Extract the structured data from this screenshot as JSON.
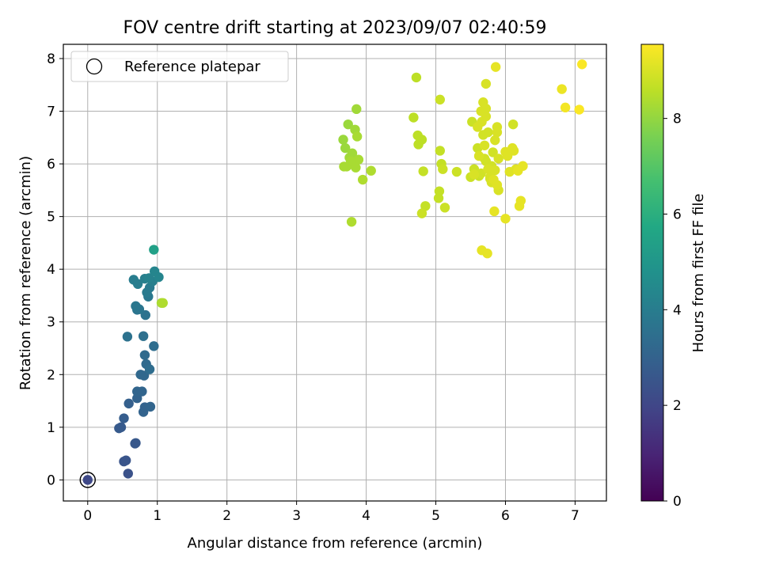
{
  "chart_data": {
    "type": "scatter",
    "title": "FOV centre drift starting at 2023/09/07 02:40:59",
    "xlabel": "Angular distance from reference (arcmin)",
    "ylabel": "Rotation from reference (arcmin)",
    "xlim": [
      -0.35,
      7.45
    ],
    "ylim": [
      -0.4,
      8.27
    ],
    "xticks": [
      0,
      1,
      2,
      3,
      4,
      5,
      6,
      7
    ],
    "yticks": [
      0,
      1,
      2,
      3,
      4,
      5,
      6,
      7,
      8
    ],
    "grid": true,
    "legend": {
      "placement": "upper-left",
      "entries": [
        "Reference platepar"
      ]
    },
    "reference_point": {
      "x": 0,
      "y": 0
    },
    "colorbar": {
      "label": "Hours from first FF file",
      "range": [
        0,
        9.55
      ],
      "ticks": [
        0,
        2,
        4,
        6,
        8
      ],
      "colormap": "viridis"
    },
    "series": [
      {
        "x": [
          0.0,
          0.58,
          0.52,
          0.55,
          0.68,
          0.69,
          0.45,
          0.48,
          0.52,
          0.59,
          0.71,
          0.8,
          0.82,
          0.9,
          0.71,
          0.78,
          0.81,
          0.76,
          0.84,
          0.82,
          0.89,
          0.95,
          0.8,
          0.57,
          0.83,
          0.71,
          0.74,
          0.69,
          0.87,
          0.85,
          0.89,
          0.66,
          0.72,
          0.82,
          0.93,
          0.88,
          0.96,
          1.02,
          0.95,
          1.06,
          1.08
        ],
        "y": [
          0.0,
          0.12,
          0.35,
          0.37,
          0.69,
          0.7,
          0.98,
          1.0,
          1.17,
          1.45,
          1.55,
          1.29,
          1.38,
          1.39,
          1.68,
          1.68,
          1.98,
          2.0,
          2.2,
          2.37,
          2.1,
          2.54,
          2.73,
          2.72,
          3.13,
          3.23,
          3.24,
          3.3,
          3.48,
          3.56,
          3.65,
          3.8,
          3.72,
          3.82,
          3.77,
          3.83,
          3.96,
          3.85,
          4.37,
          3.36,
          3.36
        ],
        "hours": [
          2.1,
          2.4,
          2.5,
          2.5,
          2.6,
          2.6,
          2.7,
          2.7,
          2.8,
          2.9,
          3.0,
          3.0,
          3.0,
          3.1,
          3.1,
          3.1,
          3.2,
          3.2,
          3.3,
          3.3,
          3.4,
          3.4,
          3.5,
          3.6,
          3.6,
          3.7,
          3.7,
          3.8,
          3.8,
          3.9,
          3.9,
          4.0,
          4.0,
          4.1,
          4.1,
          4.2,
          4.3,
          4.3,
          5.4,
          8.3,
          8.4
        ]
      },
      {
        "x": [
          3.67,
          3.7,
          3.74,
          3.76,
          3.8,
          3.82,
          3.84,
          3.86,
          3.87,
          3.89,
          3.68,
          3.72,
          3.78,
          3.85,
          3.95,
          4.07,
          3.79,
          4.68,
          4.72,
          4.74,
          4.75,
          4.8,
          4.82,
          4.85,
          5.04,
          5.05,
          5.06,
          5.08,
          5.1,
          5.13,
          5.3,
          4.8,
          5.06
        ],
        "y": [
          6.46,
          6.3,
          6.75,
          6.12,
          6.2,
          6.0,
          6.65,
          7.04,
          6.52,
          6.08,
          5.95,
          5.95,
          6.05,
          5.93,
          5.7,
          5.87,
          4.9,
          6.88,
          7.64,
          6.54,
          6.37,
          6.46,
          5.86,
          5.2,
          5.35,
          5.48,
          6.25,
          6.0,
          5.9,
          5.17,
          5.85,
          5.06,
          7.22
        ],
        "hours": [
          8.1,
          8.1,
          8.1,
          8.2,
          8.2,
          8.2,
          8.2,
          8.2,
          8.3,
          8.3,
          8.3,
          8.3,
          8.3,
          8.3,
          8.4,
          8.4,
          8.4,
          8.6,
          8.6,
          8.6,
          8.6,
          8.6,
          8.7,
          8.7,
          8.7,
          8.7,
          8.7,
          8.7,
          8.8,
          8.8,
          8.8,
          8.8,
          8.8
        ]
      },
      {
        "x": [
          5.5,
          5.52,
          5.55,
          5.6,
          5.62,
          5.65,
          5.68,
          5.7,
          5.72,
          5.75,
          5.78,
          5.8,
          5.82,
          5.85,
          5.88,
          5.9,
          5.6,
          5.65,
          5.7,
          5.75,
          5.8,
          5.85,
          5.9,
          5.55,
          5.62,
          5.66,
          5.72,
          5.78,
          5.83,
          5.88,
          6.0,
          6.03,
          6.06,
          6.1,
          6.12,
          6.15,
          6.2,
          6.22,
          6.25,
          6.18,
          6.0,
          5.66,
          5.74,
          5.84,
          5.68,
          5.72,
          5.86,
          6.11,
          5.72,
          5.88
        ],
        "y": [
          5.75,
          6.8,
          5.9,
          6.3,
          5.77,
          5.82,
          6.55,
          6.1,
          6.05,
          6.6,
          5.72,
          5.96,
          6.22,
          6.45,
          6.7,
          5.5,
          6.7,
          7.0,
          6.35,
          5.9,
          5.65,
          5.88,
          6.1,
          5.8,
          6.15,
          6.8,
          7.05,
          5.75,
          5.7,
          5.6,
          6.23,
          6.15,
          5.85,
          6.3,
          6.25,
          5.9,
          5.2,
          5.3,
          5.96,
          5.87,
          4.96,
          4.36,
          4.3,
          5.1,
          7.17,
          7.52,
          7.84,
          6.75,
          6.9,
          6.6
        ],
        "hours": [
          8.8,
          8.8,
          8.8,
          8.8,
          8.8,
          8.9,
          8.9,
          8.9,
          8.9,
          8.9,
          8.9,
          8.9,
          8.9,
          9.0,
          9.0,
          9.0,
          9.0,
          9.0,
          9.0,
          9.0,
          9.0,
          9.0,
          9.0,
          9.0,
          9.0,
          9.0,
          9.0,
          9.0,
          9.1,
          9.1,
          9.1,
          9.1,
          9.1,
          9.1,
          9.1,
          9.1,
          9.2,
          9.2,
          9.2,
          9.2,
          9.2,
          9.2,
          9.2,
          9.2,
          9.0,
          9.0,
          9.2,
          8.9,
          9.0,
          9.0
        ]
      },
      {
        "x": [
          6.81,
          6.86,
          7.06,
          7.1
        ],
        "y": [
          7.42,
          7.07,
          7.03,
          7.89
        ],
        "hours": [
          9.3,
          9.4,
          9.5,
          9.5
        ]
      }
    ]
  }
}
